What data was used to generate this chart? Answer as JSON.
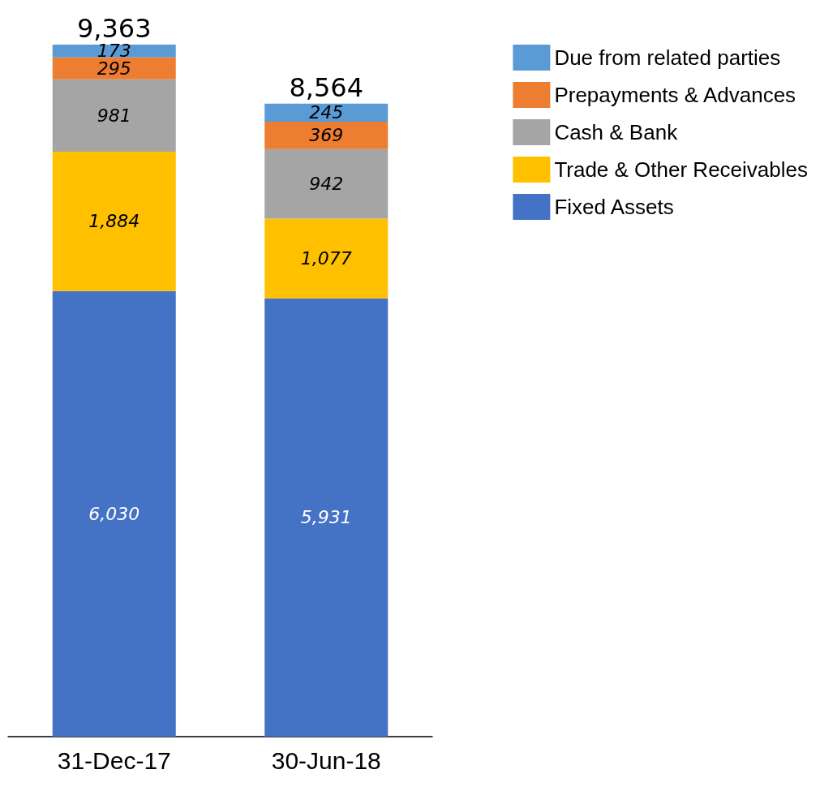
{
  "chart_data": {
    "type": "bar",
    "stacked": true,
    "categories": [
      "31-Dec-17",
      "30-Jun-18"
    ],
    "series": [
      {
        "name": "Fixed Assets",
        "color": "#4472c4",
        "values": [
          6030,
          5931
        ],
        "value_labels": [
          "6,030",
          "5,931"
        ]
      },
      {
        "name": "Trade & Other Receivables",
        "color": "#ffc000",
        "values": [
          1884,
          1077
        ],
        "value_labels": [
          "1,884",
          "1,077"
        ]
      },
      {
        "name": "Cash & Bank",
        "color": "#a5a5a5",
        "values": [
          981,
          942
        ],
        "value_labels": [
          "981",
          "942"
        ]
      },
      {
        "name": "Prepayments & Advances",
        "color": "#ed7d31",
        "values": [
          295,
          369
        ],
        "value_labels": [
          "295",
          "369"
        ]
      },
      {
        "name": "Due from related parties",
        "color": "#5b9bd5",
        "values": [
          173,
          245
        ],
        "value_labels": [
          "173",
          "245"
        ]
      }
    ],
    "totals": [
      "9,363",
      "8,564"
    ],
    "legend": "top right"
  }
}
